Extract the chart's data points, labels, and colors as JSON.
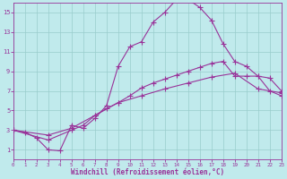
{
  "xlabel": "Windchill (Refroidissement éolien,°C)",
  "bg_color": "#c0eaec",
  "line_color": "#993399",
  "grid_color": "#99cccc",
  "line1_x": [
    0,
    1,
    2,
    3,
    4,
    5,
    6,
    7,
    8,
    9,
    10,
    11,
    12,
    13,
    14,
    15,
    16,
    17,
    18,
    19,
    20,
    21,
    22,
    23
  ],
  "line1_y": [
    3.0,
    2.8,
    2.2,
    1.0,
    0.9,
    3.5,
    3.2,
    4.2,
    5.5,
    9.5,
    11.5,
    12.0,
    14.0,
    15.0,
    16.3,
    16.3,
    15.5,
    14.2,
    11.8,
    10.0,
    9.5,
    8.5,
    8.3,
    7.0
  ],
  "line2_x": [
    0,
    3,
    5,
    6,
    7,
    8,
    9,
    10,
    11,
    12,
    13,
    14,
    15,
    16,
    17,
    18,
    19,
    20,
    21,
    22,
    23
  ],
  "line2_y": [
    3.0,
    2.0,
    3.0,
    3.5,
    4.5,
    5.2,
    5.8,
    6.5,
    7.3,
    7.8,
    8.2,
    8.6,
    9.0,
    9.4,
    9.8,
    10.0,
    8.5,
    8.5,
    8.5,
    7.0,
    6.5
  ],
  "line3_x": [
    0,
    3,
    5,
    7,
    9,
    11,
    13,
    15,
    17,
    19,
    21,
    23
  ],
  "line3_y": [
    3.0,
    2.5,
    3.2,
    4.5,
    5.8,
    6.5,
    7.2,
    7.8,
    8.4,
    8.8,
    7.2,
    6.8
  ],
  "xlim": [
    0,
    23
  ],
  "ylim": [
    0,
    16
  ],
  "xticks": [
    0,
    1,
    2,
    3,
    4,
    5,
    6,
    7,
    8,
    9,
    10,
    11,
    12,
    13,
    14,
    15,
    16,
    17,
    18,
    19,
    20,
    21,
    22,
    23
  ],
  "yticks": [
    1,
    3,
    5,
    7,
    9,
    11,
    13,
    15
  ],
  "marker_size": 2.0,
  "line_width": 0.8,
  "tick_fontsize": 5.0,
  "xlabel_fontsize": 5.5
}
